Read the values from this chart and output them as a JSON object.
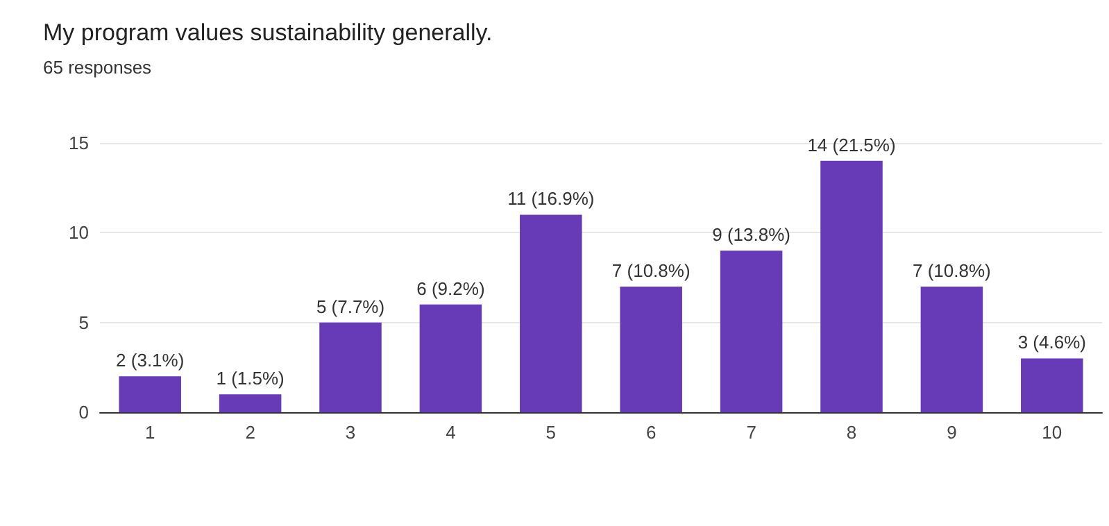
{
  "chart_data": {
    "type": "bar",
    "title": "My program values sustainability generally.",
    "subtitle": "65 responses",
    "categories": [
      "1",
      "2",
      "3",
      "4",
      "5",
      "6",
      "7",
      "8",
      "9",
      "10"
    ],
    "values": [
      2,
      1,
      5,
      6,
      11,
      7,
      9,
      14,
      7,
      3
    ],
    "value_labels": [
      "2 (3.1%)",
      "1 (1.5%)",
      "5 (7.7%)",
      "6 (9.2%)",
      "11 (16.9%)",
      "7 (10.8%)",
      "9 (13.8%)",
      "14 (21.5%)",
      "7 (10.8%)",
      "3 (4.6%)"
    ],
    "color": "#673ab7",
    "ylim": [
      0,
      15
    ],
    "yticks": [
      0,
      5,
      10,
      15
    ],
    "grid": "y"
  }
}
